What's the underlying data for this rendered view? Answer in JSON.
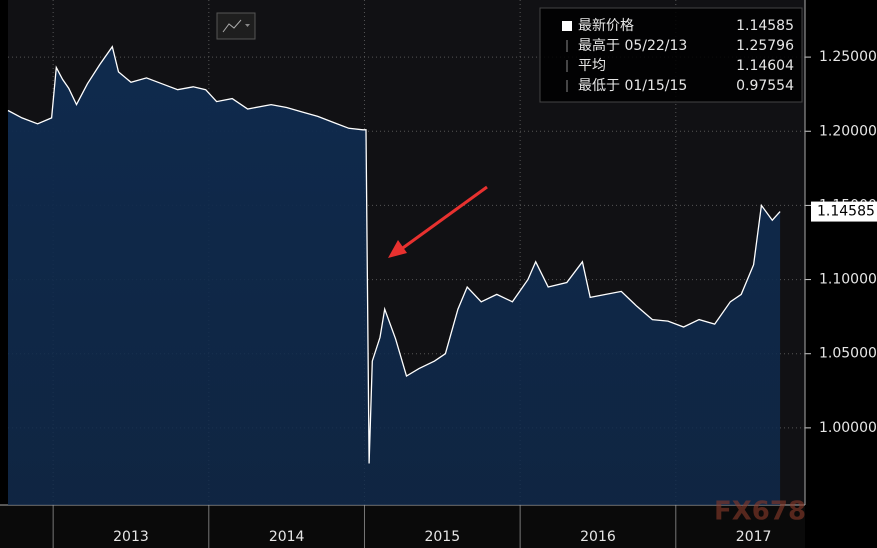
{
  "chart_data": {
    "type": "area",
    "x": [
      2012.71,
      2012.8,
      2012.9,
      2012.99,
      2013.02,
      2013.06,
      2013.1,
      2013.15,
      2013.22,
      2013.3,
      2013.38,
      2013.42,
      2013.5,
      2013.6,
      2013.7,
      2013.8,
      2013.9,
      2013.98,
      2014.05,
      2014.15,
      2014.25,
      2014.4,
      2014.5,
      2014.6,
      2014.7,
      2014.8,
      2014.9,
      2014.99,
      2015.01,
      2015.03,
      2015.05,
      2015.1,
      2015.13,
      2015.2,
      2015.27,
      2015.35,
      2015.45,
      2015.52,
      2015.6,
      2015.66,
      2015.75,
      2015.85,
      2015.95,
      2016.05,
      2016.1,
      2016.18,
      2016.3,
      2016.4,
      2016.45,
      2016.55,
      2016.65,
      2016.75,
      2016.85,
      2016.95,
      2017.05,
      2017.15,
      2017.25,
      2017.35,
      2017.42,
      2017.5,
      2017.55,
      2017.62,
      2017.67
    ],
    "series": [
      {
        "name": "最新价格",
        "color": "#ffffff",
        "fill": "#0f2a4d",
        "values": [
          1.214,
          1.209,
          1.205,
          1.209,
          1.243,
          1.235,
          1.229,
          1.218,
          1.232,
          1.245,
          1.257,
          1.24,
          1.233,
          1.236,
          1.232,
          1.228,
          1.23,
          1.228,
          1.22,
          1.222,
          1.215,
          1.218,
          1.216,
          1.213,
          1.21,
          1.206,
          1.202,
          1.201,
          1.201,
          0.976,
          1.045,
          1.061,
          1.08,
          1.06,
          1.035,
          1.04,
          1.045,
          1.05,
          1.08,
          1.095,
          1.085,
          1.09,
          1.085,
          1.1,
          1.112,
          1.095,
          1.098,
          1.112,
          1.088,
          1.09,
          1.092,
          1.082,
          1.073,
          1.072,
          1.068,
          1.073,
          1.07,
          1.085,
          1.09,
          1.11,
          1.15,
          1.14,
          1.14585
        ]
      }
    ],
    "xlim": [
      2012.71,
      2017.83
    ],
    "xticks": [
      {
        "value": 2013,
        "label": "2013"
      },
      {
        "value": 2014,
        "label": "2014"
      },
      {
        "value": 2015,
        "label": "2015"
      },
      {
        "value": 2016,
        "label": "2016"
      },
      {
        "value": 2017,
        "label": "2017"
      }
    ],
    "ylim": [
      0.948,
      1.2885
    ],
    "yticks": [
      {
        "value": 1.0,
        "label": "1.00000"
      },
      {
        "value": 1.05,
        "label": "1.05000"
      },
      {
        "value": 1.1,
        "label": "1.10000"
      },
      {
        "value": 1.15,
        "label": "1.15000"
      },
      {
        "value": 1.2,
        "label": "1.20000"
      },
      {
        "value": 1.25,
        "label": "1.25000"
      }
    ],
    "grid": true,
    "legend": {
      "position": "upper right",
      "items": [
        {
          "label": "最新价格",
          "value": "1.14585"
        },
        {
          "label": "最高于 05/22/13",
          "value": "1.25796"
        },
        {
          "label": "平均",
          "value": "1.14604"
        },
        {
          "label": "最低于 01/15/15",
          "value": "0.97554"
        }
      ]
    },
    "watermark": "FX678"
  }
}
